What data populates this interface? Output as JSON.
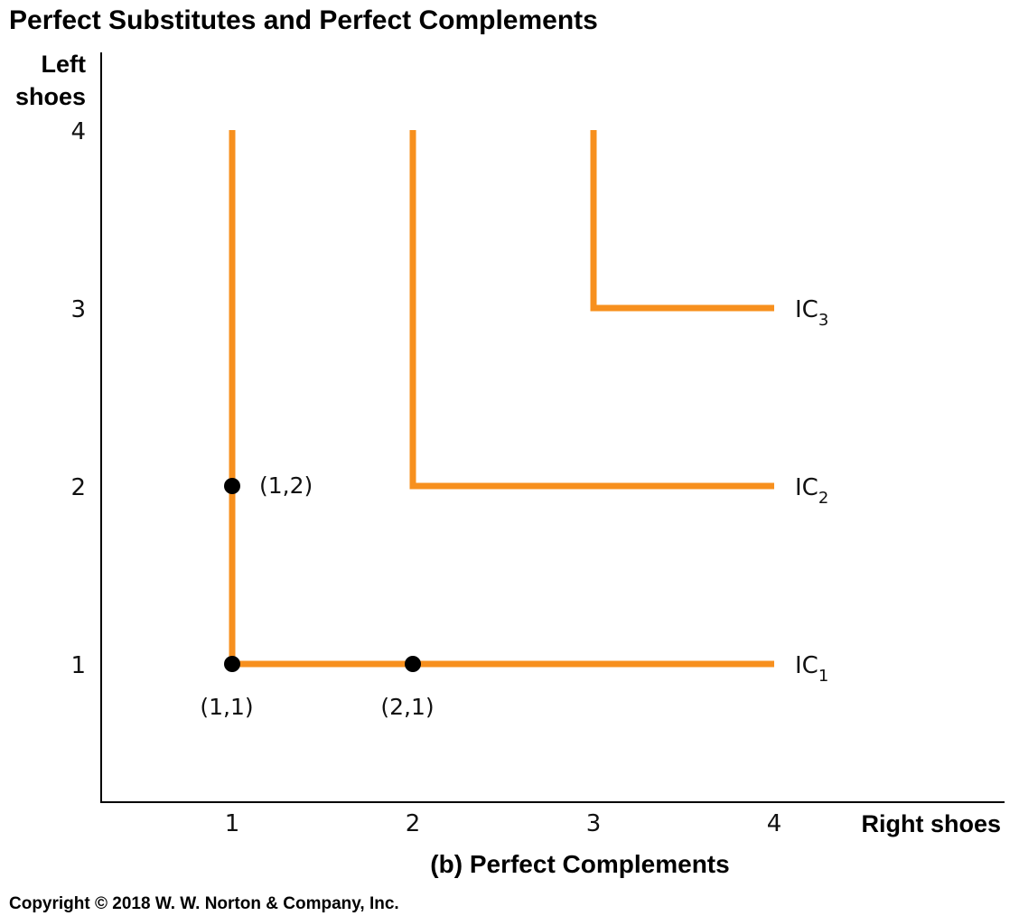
{
  "chart_data": {
    "type": "line",
    "title": "Perfect Substitutes and Perfect Complements",
    "subtitle": "(b) Perfect Complements",
    "xlabel": "Right shoes",
    "ylabel_line1": "Left",
    "ylabel_line2": "shoes",
    "xlim": [
      0.25,
      4.25
    ],
    "ylim": [
      0.25,
      4.25
    ],
    "x_ticks": [
      1,
      2,
      3,
      4
    ],
    "y_ticks": [
      1,
      2,
      3,
      4
    ],
    "grid": false,
    "color": "#f7901e",
    "series": [
      {
        "name": "IC",
        "subscript": "1",
        "points": [
          [
            1,
            4
          ],
          [
            1,
            1
          ],
          [
            4,
            1
          ]
        ]
      },
      {
        "name": "IC",
        "subscript": "2",
        "points": [
          [
            2,
            4
          ],
          [
            2,
            2
          ],
          [
            4,
            2
          ]
        ]
      },
      {
        "name": "IC",
        "subscript": "3",
        "points": [
          [
            3,
            4
          ],
          [
            3,
            3
          ],
          [
            4,
            3
          ]
        ]
      }
    ],
    "highlighted_points": [
      {
        "x": 1,
        "y": 1,
        "label": "(1,1)",
        "label_position": "below"
      },
      {
        "x": 2,
        "y": 1,
        "label": "(2,1)",
        "label_position": "below"
      },
      {
        "x": 1,
        "y": 2,
        "label": "(1,2)",
        "label_position": "right"
      }
    ]
  },
  "copyright": "Copyright © 2018 W. W. Norton & Company, Inc."
}
